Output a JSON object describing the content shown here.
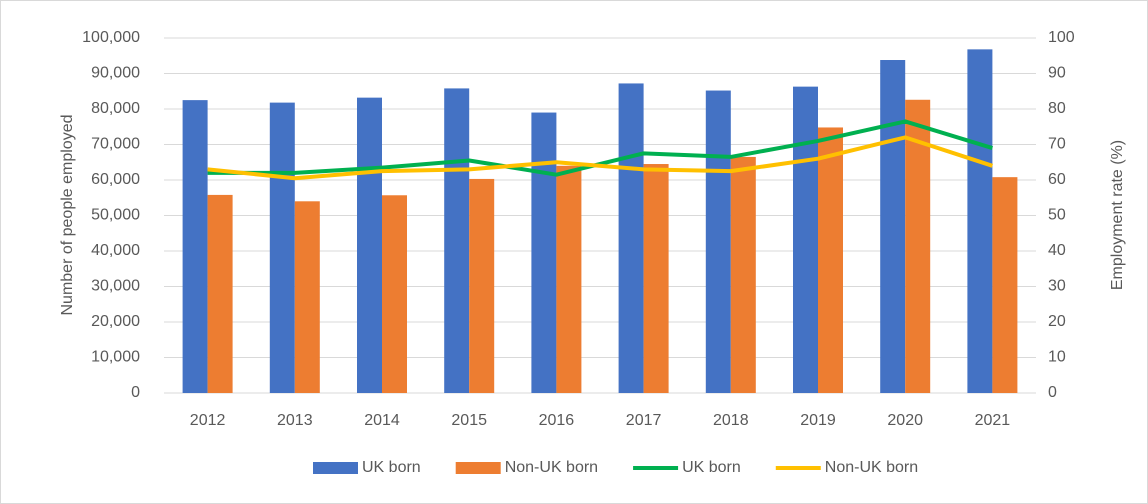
{
  "chart_data": {
    "type": "bar",
    "categories": [
      "2012",
      "2013",
      "2014",
      "2015",
      "2016",
      "2017",
      "2018",
      "2019",
      "2020",
      "2021"
    ],
    "ylabel": "Number of people employed",
    "y2label": "Employment rate (%)",
    "ylim": [
      0,
      100000
    ],
    "yticks": [
      0,
      {
        "value": 10000,
        "label": "10,000"
      },
      {
        "value": 20000,
        "label": "20,000"
      },
      {
        "value": 30000,
        "label": "30,000"
      },
      {
        "value": 40000,
        "label": "40,000"
      },
      {
        "value": 50000,
        "label": "50,000"
      },
      {
        "value": 60000,
        "label": "60,000"
      },
      {
        "value": 70000,
        "label": "70,000"
      },
      {
        "value": 80000,
        "label": "80,000"
      },
      {
        "value": 90000,
        "label": "90,000"
      },
      {
        "value": 100000,
        "label": "100,000"
      }
    ],
    "y2lim": [
      0,
      100
    ],
    "y2ticks": [
      0,
      10,
      20,
      30,
      40,
      50,
      60,
      70,
      80,
      90,
      100
    ],
    "grid": true,
    "legend": "bottom",
    "series": [
      {
        "name": "UK born",
        "type": "bar",
        "color": "#4472c4",
        "values": [
          82500,
          81800,
          83200,
          85800,
          79000,
          87200,
          85200,
          86300,
          93800,
          96800
        ]
      },
      {
        "name": "Non-UK born",
        "type": "bar",
        "color": "#ed7d31",
        "values": [
          55800,
          54000,
          55700,
          60300,
          64000,
          64500,
          66500,
          74800,
          82600,
          60800
        ]
      },
      {
        "name": "UK born",
        "type": "line",
        "axis": "y2",
        "color": "#00b050",
        "values": [
          62,
          62,
          63.5,
          65.5,
          61.5,
          67.5,
          66.5,
          71,
          76.5,
          69
        ]
      },
      {
        "name": "Non-UK born",
        "type": "line",
        "axis": "y2",
        "color": "#ffc000",
        "values": [
          63,
          60.5,
          62.5,
          63,
          65,
          63,
          62.5,
          66,
          72,
          64
        ]
      }
    ]
  }
}
